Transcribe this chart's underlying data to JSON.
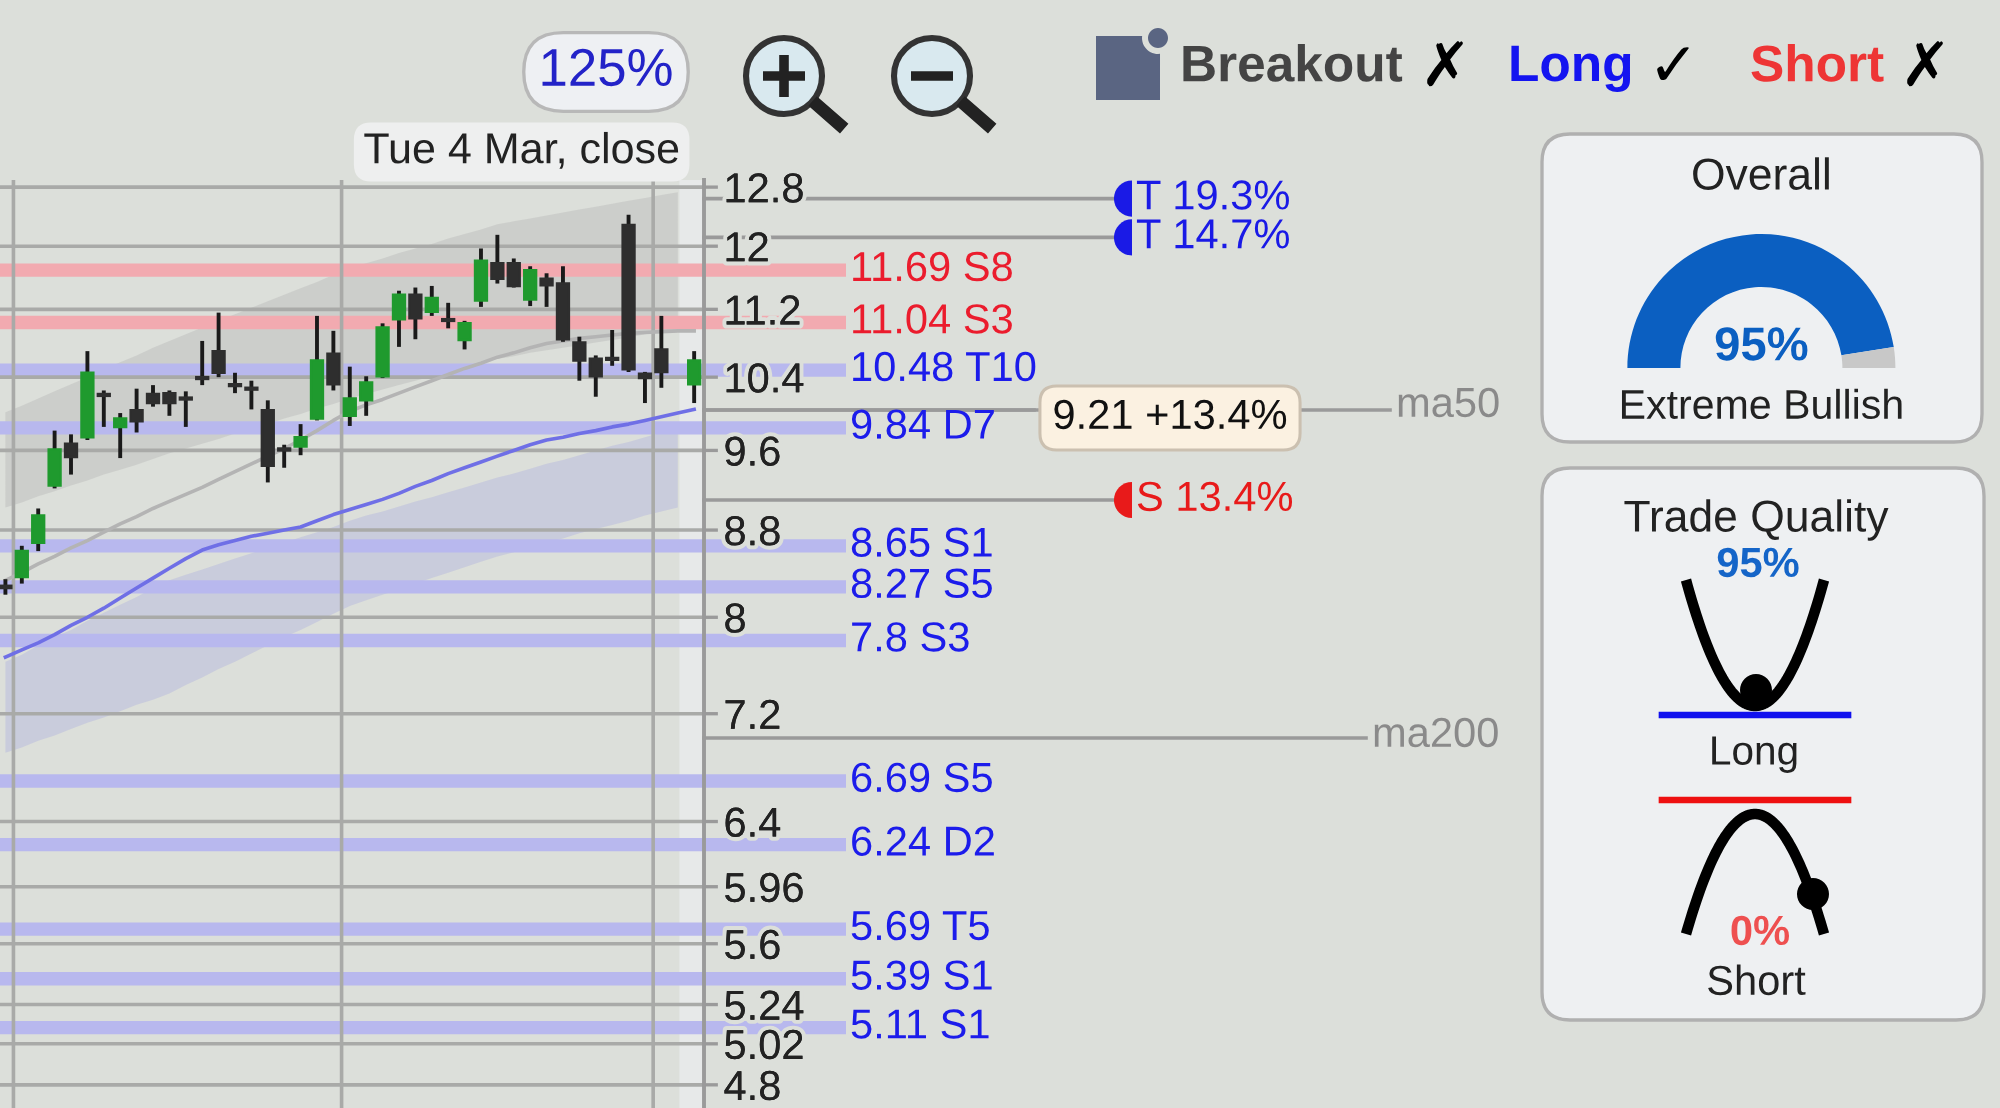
{
  "chart_data": [
    {
      "type": "candlestick",
      "categories": [
        null,
        null,
        null,
        null,
        null,
        null,
        null,
        null,
        null,
        null,
        null,
        null,
        null,
        null,
        null,
        null,
        null,
        null,
        null,
        null,
        null,
        null,
        null,
        null,
        null,
        null,
        null,
        null,
        null,
        null,
        null,
        null,
        null,
        null,
        null,
        null,
        null,
        null,
        null,
        null,
        null,
        null,
        null
      ],
      "series": [
        {
          "type": "candlestick",
          "ohlc": [
            [
              8.28,
              8.34,
              8.2,
              8.26
            ],
            [
              8.36,
              8.65,
              8.3,
              8.6
            ],
            [
              8.68,
              9.01,
              8.6,
              8.94
            ],
            [
              9.24,
              9.81,
              9.21,
              9.61
            ],
            [
              9.67,
              9.77,
              9.35,
              9.53
            ],
            [
              9.74,
              10.7,
              9.71,
              10.45
            ],
            [
              10.21,
              10.25,
              9.85,
              10.19
            ],
            [
              9.85,
              10.0,
              9.52,
              9.94
            ],
            [
              10.03,
              10.27,
              9.79,
              9.91
            ],
            [
              10.21,
              10.31,
              10.07,
              10.11
            ],
            [
              10.22,
              10.25,
              9.97,
              10.11
            ],
            [
              10.17,
              10.24,
              9.85,
              10.15
            ],
            [
              10.4,
              10.82,
              10.31,
              10.38
            ],
            [
              10.7,
              11.16,
              10.4,
              10.45
            ],
            [
              10.32,
              10.45,
              10.22,
              10.3
            ],
            [
              10.28,
              10.36,
              10.04,
              10.26
            ],
            [
              10.03,
              10.14,
              9.27,
              9.44
            ],
            [
              9.62,
              9.66,
              9.42,
              9.6
            ],
            [
              9.64,
              9.88,
              9.55,
              9.74
            ],
            [
              9.94,
              11.12,
              9.92,
              10.59
            ],
            [
              10.67,
              10.94,
              10.25,
              10.32
            ],
            [
              9.97,
              10.52,
              9.86,
              10.16
            ],
            [
              10.14,
              10.41,
              9.97,
              10.34
            ],
            [
              10.41,
              11.03,
              10.39,
              10.98
            ],
            [
              11.08,
              11.43,
              10.75,
              11.38
            ],
            [
              11.38,
              11.47,
              10.84,
              11.09
            ],
            [
              11.17,
              11.49,
              11.12,
              11.34
            ],
            [
              11.08,
              11.28,
              10.97,
              11.06
            ],
            [
              10.83,
              11.06,
              10.72,
              11.03
            ],
            [
              11.31,
              11.97,
              11.23,
              11.81
            ],
            [
              11.78,
              12.15,
              11.52,
              11.58
            ],
            [
              11.78,
              11.84,
              11.47,
              11.49
            ],
            [
              11.32,
              11.74,
              11.24,
              11.69
            ],
            [
              11.58,
              11.65,
              11.23,
              11.5
            ],
            [
              11.52,
              11.74,
              10.81,
              10.84
            ],
            [
              10.8,
              10.87,
              10.36,
              10.59
            ],
            [
              10.61,
              10.65,
              10.18,
              10.41
            ],
            [
              10.62,
              10.95,
              10.53,
              10.6
            ],
            [
              12.28,
              12.42,
              10.46,
              10.49
            ],
            [
              10.44,
              10.46,
              10.11,
              10.39
            ],
            [
              10.72,
              11.12,
              10.28,
              10.46
            ],
            null,
            [
              10.32,
              10.7,
              10.11,
              10.59
            ]
          ],
          "colors": [
            "#2e2e2e",
            "#1f9a2e",
            "#1f9a2e",
            "#1f9a2e",
            "#2e2e2e",
            "#1f9a2e",
            "#2e2e2e",
            "#1f9a2e",
            "#2e2e2e",
            "#2e2e2e",
            "#2e2e2e",
            "#2e2e2e",
            "#2e2e2e",
            "#2e2e2e",
            "#2e2e2e",
            "#2e2e2e",
            "#2e2e2e",
            "#2e2e2e",
            "#1f9a2e",
            "#1f9a2e",
            "#2e2e2e",
            "#1f9a2e",
            "#1f9a2e",
            "#1f9a2e",
            "#1f9a2e",
            "#2e2e2e",
            "#1f9a2e",
            "#2e2e2e",
            "#1f9a2e",
            "#1f9a2e",
            "#2e2e2e",
            "#2e2e2e",
            "#1f9a2e",
            "#2e2e2e",
            "#2e2e2e",
            "#2e2e2e",
            "#2e2e2e",
            "#2e2e2e",
            "#2e2e2e",
            "#2e2e2e",
            "#2e2e2e",
            null,
            "#1f9a2e"
          ]
        },
        {
          "type": "line",
          "color": "#b4b4b4",
          "values": [
            8.33,
            8.4,
            8.48,
            8.55,
            8.63,
            8.7,
            8.78,
            8.86,
            8.93,
            9.01,
            9.08,
            9.15,
            9.22,
            9.3,
            9.38,
            9.46,
            9.54,
            9.62,
            9.71,
            9.81,
            9.92,
            10.02,
            10.09,
            10.15,
            10.22,
            10.29,
            10.36,
            10.43,
            10.5,
            10.56,
            10.63,
            10.68,
            10.74,
            10.79,
            10.82,
            10.85,
            10.87,
            10.89,
            10.91,
            10.92,
            10.93,
            10.94,
            10.94
          ],
          "lower": [
            9.02,
            9.07,
            9.13,
            9.18,
            9.24,
            9.29,
            9.35,
            9.4,
            9.45,
            9.51,
            9.57,
            9.62,
            9.67,
            9.72,
            9.78,
            9.83,
            9.88,
            9.94,
            9.99,
            10.05,
            10.1,
            10.16,
            10.21,
            10.26,
            10.31,
            10.36,
            10.41,
            10.46,
            10.51,
            10.56,
            10.61,
            10.64,
            10.68,
            10.71,
            10.74,
            10.77,
            10.8,
            10.83,
            10.86,
            10.9,
            10.93,
            10.96,
            null
          ],
          "upper": [
            10.01,
            10.08,
            10.16,
            10.24,
            10.32,
            10.4,
            10.49,
            10.57,
            10.65,
            10.74,
            10.82,
            10.9,
            10.98,
            11.06,
            11.14,
            11.22,
            11.3,
            11.38,
            11.46,
            11.54,
            11.63,
            11.72,
            11.78,
            11.84,
            11.91,
            11.97,
            12.03,
            12.1,
            12.16,
            12.22,
            12.29,
            12.33,
            12.37,
            12.41,
            12.45,
            12.49,
            12.53,
            12.57,
            12.61,
            12.65,
            12.69,
            12.73,
            null
          ]
        },
        {
          "type": "line",
          "color": "#6f6fe6",
          "values": [
            7.66,
            7.72,
            7.78,
            7.85,
            7.93,
            8.0,
            8.08,
            8.17,
            8.26,
            8.35,
            8.44,
            8.53,
            8.61,
            8.66,
            8.7,
            8.74,
            8.77,
            8.8,
            8.83,
            8.89,
            8.95,
            9.0,
            9.05,
            9.1,
            9.16,
            9.23,
            9.29,
            9.36,
            9.42,
            9.48,
            9.54,
            9.6,
            9.66,
            9.71,
            9.74,
            9.78,
            9.81,
            9.85,
            9.88,
            9.92,
            9.96,
            10.0,
            10.04
          ],
          "lower": [
            6.9,
            6.94,
            6.99,
            7.03,
            7.08,
            7.13,
            7.17,
            7.22,
            7.27,
            7.31,
            7.36,
            7.43,
            7.49,
            7.56,
            7.62,
            7.69,
            7.76,
            7.83,
            7.89,
            7.96,
            8.03,
            8.1,
            8.15,
            8.2,
            8.25,
            8.3,
            8.35,
            8.4,
            8.45,
            8.5,
            8.55,
            8.59,
            8.63,
            8.68,
            8.72,
            8.77,
            8.81,
            8.85,
            8.89,
            8.94,
            8.98,
            9.02,
            null
          ],
          "upper": [
            7.62,
            7.68,
            7.76,
            7.83,
            7.89,
            7.97,
            8.04,
            8.11,
            8.18,
            8.26,
            8.33,
            8.38,
            8.43,
            8.48,
            8.53,
            8.58,
            8.63,
            8.68,
            8.73,
            8.78,
            8.83,
            8.89,
            8.94,
            8.98,
            9.03,
            9.08,
            9.12,
            9.17,
            9.22,
            9.27,
            9.32,
            9.36,
            9.41,
            9.46,
            9.5,
            9.55,
            9.6,
            9.65,
            9.69,
            9.74,
            9.79,
            9.84,
            null
          ]
        }
      ],
      "ylim": [
        4.68,
        12.9
      ],
      "yticks": [
        12.8,
        12,
        11.2,
        10.4,
        9.6,
        8.8,
        8,
        7.2,
        6.4,
        5.96,
        5.6,
        5.24,
        5.02,
        4.8
      ],
      "log": true,
      "grid": "y",
      "ref_lines": [
        {
          "axis": "y",
          "value": 11.69,
          "label": "11.69 S8",
          "color": "#f2aab0"
        },
        {
          "axis": "y",
          "value": 11.04,
          "label": "11.04 S3",
          "color": "#f2aab0"
        },
        {
          "axis": "y",
          "value": 10.48,
          "label": "10.48 T10",
          "color": "#b8b8ee"
        },
        {
          "axis": "y",
          "value": 9.84,
          "label": "9.84 D7",
          "color": "#b8b8ee"
        },
        {
          "axis": "y",
          "value": 8.65,
          "label": "8.65 S1",
          "color": "#b8b8ee"
        },
        {
          "axis": "y",
          "value": 8.27,
          "label": "8.27 S5",
          "color": "#b8b8ee"
        },
        {
          "axis": "y",
          "value": 7.8,
          "label": "7.8 S3",
          "color": "#b8b8ee"
        },
        {
          "axis": "y",
          "value": 6.69,
          "label": "6.69 S5",
          "color": "#b8b8ee"
        },
        {
          "axis": "y",
          "value": 6.24,
          "label": "6.24 D2",
          "color": "#b8b8ee"
        },
        {
          "axis": "y",
          "value": 5.69,
          "label": "5.69 T5",
          "color": "#b8b8ee"
        },
        {
          "axis": "y",
          "value": 5.39,
          "label": "5.39 S1",
          "color": "#b8b8ee"
        },
        {
          "axis": "y",
          "value": 5.11,
          "label": "5.11 S1",
          "color": "#b8b8ee"
        }
      ],
      "annotations": [
        "125%",
        "Tue 4 Mar, close",
        "Breakout",
        "✗",
        "Long",
        "✓",
        "Short",
        "✗",
        "T 19.3%",
        "T 14.7%",
        "S 13.4%",
        "9.21 +13.4%",
        "ma50",
        "ma200"
      ]
    },
    {
      "type": "donut",
      "title": "Overall",
      "categories": [
        null,
        null
      ],
      "values": [
        95,
        5
      ],
      "colors": [
        "#0b5fc1",
        "#c8c8c8"
      ],
      "value_labels": [
        "95%",
        null
      ],
      "annotations": [
        "Extreme Bullish"
      ]
    },
    {
      "type": "other",
      "title": "Trade Quality",
      "annotations": [
        "95%",
        "Long",
        "0%",
        "Short"
      ]
    }
  ]
}
